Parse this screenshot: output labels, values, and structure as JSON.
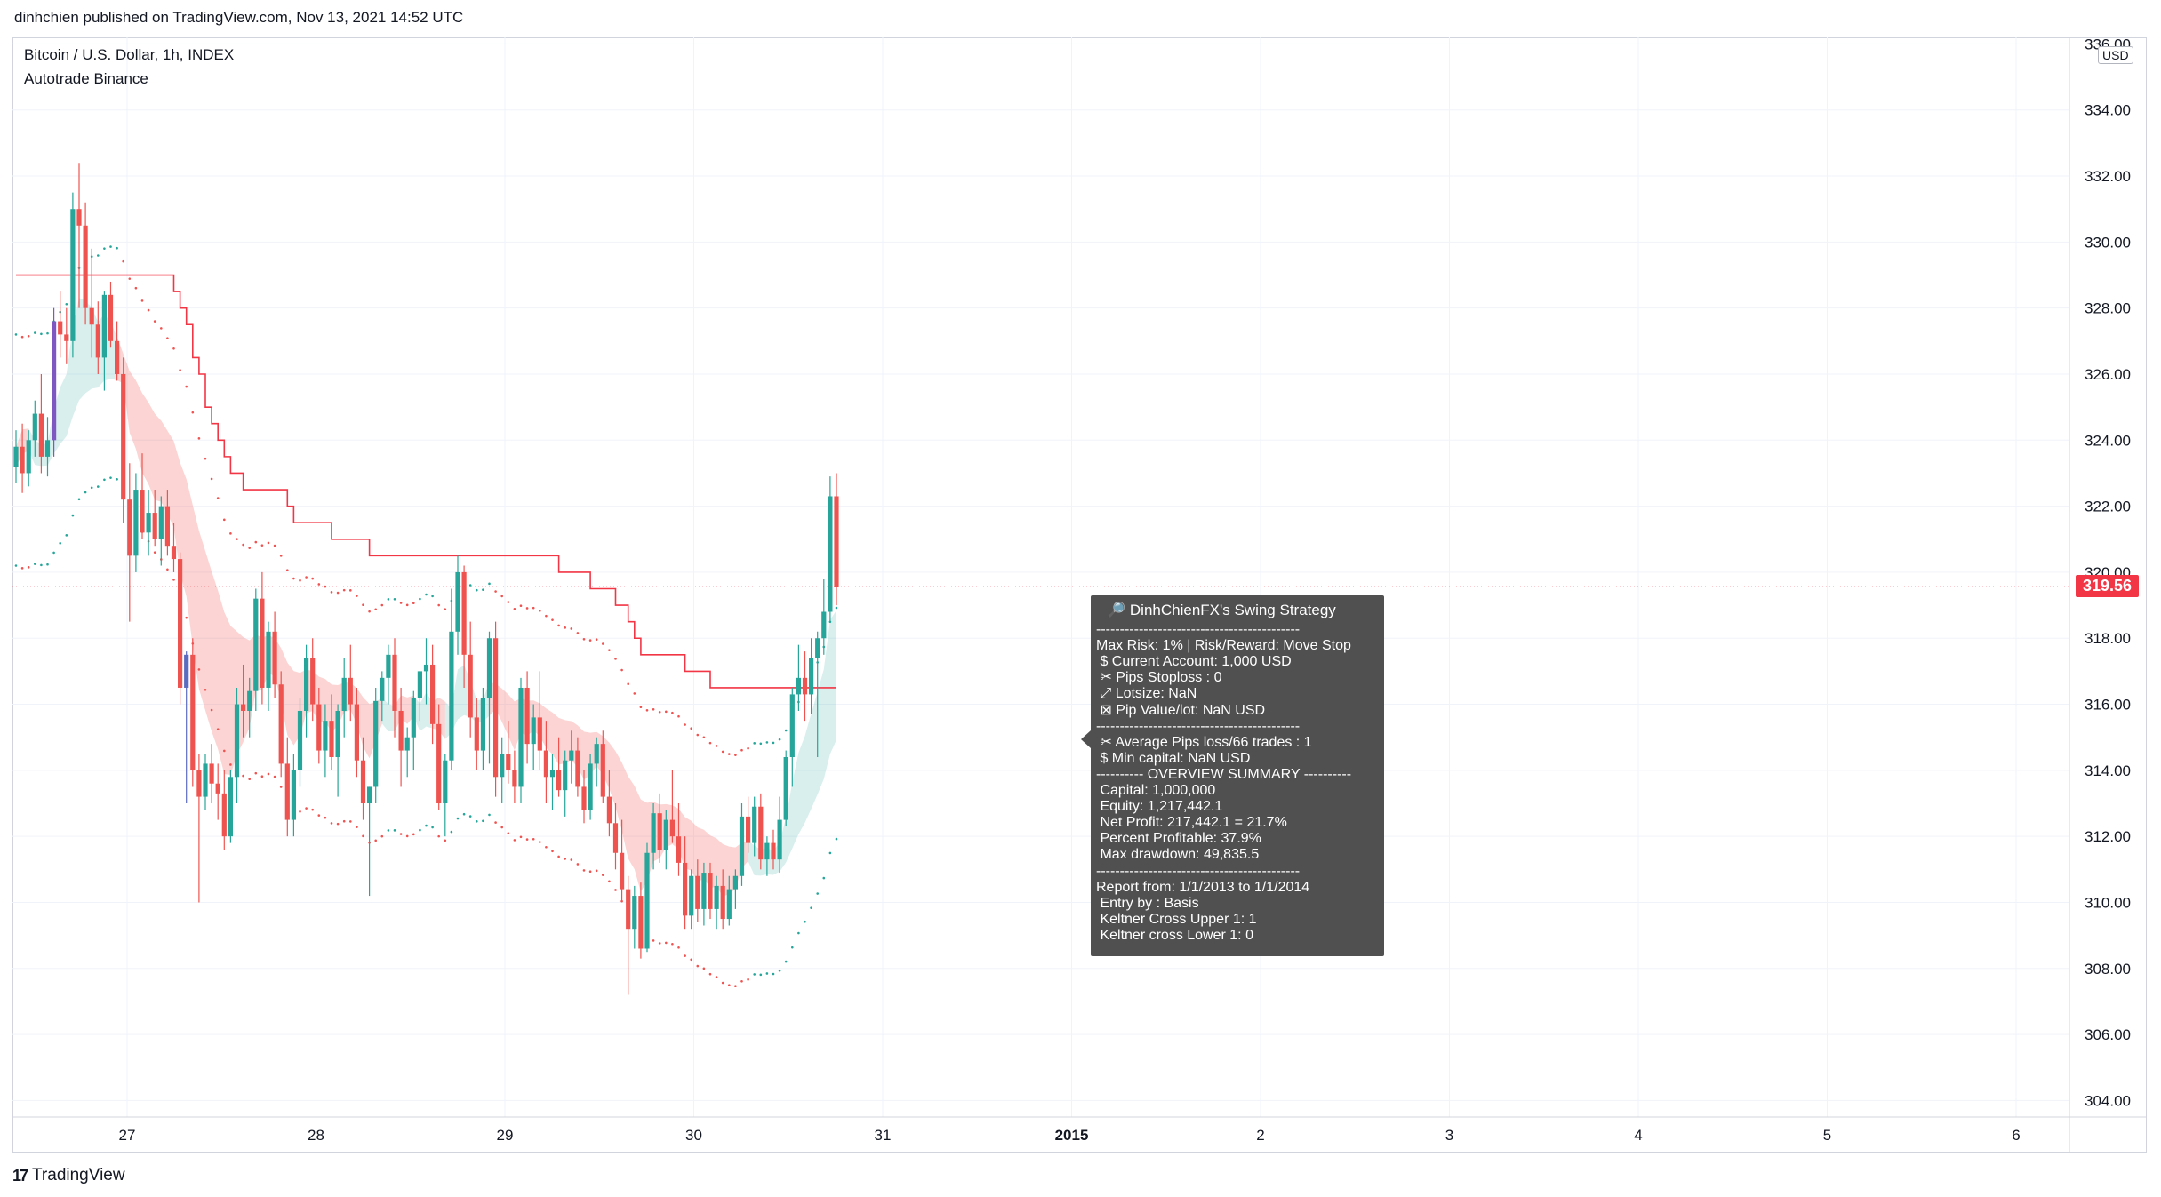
{
  "header": {
    "publisher": "dinhchien published on TradingView.com, Nov 13, 2021 14:52 UTC"
  },
  "legend": {
    "symbol": "Bitcoin / U.S. Dollar, 1h, INDEX",
    "indicator": "Autotrade Binance"
  },
  "footer": {
    "brand": "TradingView",
    "logo_glyph": "17"
  },
  "price_axis": {
    "currency": "USD",
    "last_price_label": "319.56"
  },
  "colors": {
    "up": "#26a69a",
    "down": "#ef5350",
    "special_bull": "#7e57c2",
    "special_bear": "#5b6bc0",
    "cloud_red": "rgba(239,83,80,0.25)",
    "cloud_green": "rgba(38,166,154,0.18)",
    "stop_line": "#f23645",
    "last_price": "#f23645",
    "tooltip_bg": "#505050"
  },
  "strategy_box": {
    "title": "🔎 DinhChienFX's Swing Strategy",
    "lines": [
      "-------------------------------------------",
      "Max Risk: 1% | Risk/Reward: Move Stop",
      " $ Current Account: 1,000 USD",
      " ✂ Pips Stoploss : 0",
      " ⤢ Lotsize: NaN",
      " ⊠ Pip Value/lot: NaN USD",
      "-------------------------------------------",
      " ✂ Average Pips loss/66 trades : 1",
      " $ Min capital: NaN USD",
      "---------- OVERVIEW SUMMARY ----------",
      " Capital: 1,000,000",
      " Equity: 1,217,442.1",
      " Net Profit: 217,442.1 = 21.7%",
      " Percent Profitable: 37.9%",
      " Max drawdown: 49,835.5",
      "-------------------------------------------",
      "Report from: 1/1/2013 to 1/1/2014",
      " Entry by : Basis",
      " Keltner Cross Upper 1: 1",
      " Keltner cross Lower 1: 0"
    ]
  },
  "chart_data": {
    "type": "candlestick",
    "x_ticks": [
      "27",
      "28",
      "29",
      "30",
      "31",
      "2015",
      "2",
      "3",
      "4",
      "5",
      "6"
    ],
    "y_ticks": [
      "304.00",
      "306.00",
      "308.00",
      "310.00",
      "312.00",
      "314.00",
      "316.00",
      "318.00",
      "320.00",
      "322.00",
      "324.00",
      "326.00",
      "328.00",
      "330.00",
      "332.00",
      "334.00",
      "336.00"
    ],
    "ylim": [
      303.5,
      336.2
    ],
    "last_price": 319.56,
    "candles": [
      [
        323.2,
        324.3,
        322.7,
        323.8
      ],
      [
        323.8,
        324.5,
        322.4,
        323.0
      ],
      [
        323.0,
        324.3,
        322.6,
        324.0
      ],
      [
        324.0,
        325.2,
        323.5,
        324.8
      ],
      [
        324.8,
        326.0,
        323.0,
        323.5
      ],
      [
        323.5,
        324.7,
        322.9,
        324.0
      ],
      [
        324.0,
        328.0,
        323.5,
        327.6
      ],
      [
        327.6,
        328.5,
        326.5,
        327.2
      ],
      [
        327.2,
        328.0,
        326.3,
        327.0
      ],
      [
        327.0,
        331.5,
        326.5,
        331.0
      ],
      [
        331.0,
        332.4,
        328.0,
        330.5
      ],
      [
        330.5,
        331.2,
        327.5,
        328.0
      ],
      [
        328.0,
        329.8,
        326.5,
        327.5
      ],
      [
        327.5,
        328.2,
        326.0,
        326.5
      ],
      [
        326.5,
        328.5,
        325.5,
        328.4
      ],
      [
        328.4,
        328.8,
        326.8,
        327.0
      ],
      [
        327.0,
        327.6,
        325.8,
        326.0
      ],
      [
        326.0,
        326.5,
        321.5,
        322.2
      ],
      [
        322.2,
        323.3,
        318.5,
        320.5
      ],
      [
        320.5,
        323.0,
        320.0,
        322.5
      ],
      [
        322.5,
        323.6,
        321.0,
        321.2
      ],
      [
        321.2,
        322.5,
        320.5,
        321.8
      ],
      [
        321.8,
        322.5,
        320.8,
        321.0
      ],
      [
        321.0,
        322.3,
        320.2,
        322.0
      ],
      [
        322.0,
        322.5,
        320.5,
        320.8
      ],
      [
        320.8,
        321.5,
        320.0,
        320.4
      ],
      [
        320.4,
        320.6,
        316.0,
        316.5
      ],
      [
        316.5,
        317.6,
        313.0,
        317.5
      ],
      [
        317.5,
        318.0,
        313.5,
        314.0
      ],
      [
        314.0,
        314.5,
        310.0,
        313.2
      ],
      [
        313.2,
        314.5,
        312.8,
        314.2
      ],
      [
        314.2,
        314.8,
        313.0,
        313.6
      ],
      [
        313.6,
        314.2,
        312.5,
        313.3
      ],
      [
        313.3,
        314.0,
        311.6,
        312.0
      ],
      [
        312.0,
        314.0,
        311.8,
        313.8
      ],
      [
        313.8,
        316.5,
        313.0,
        316.0
      ],
      [
        316.0,
        317.2,
        315.0,
        315.8
      ],
      [
        315.8,
        316.8,
        315.0,
        316.4
      ],
      [
        316.4,
        319.5,
        315.8,
        319.2
      ],
      [
        319.2,
        320.0,
        316.0,
        316.5
      ],
      [
        316.5,
        318.5,
        315.8,
        318.2
      ],
      [
        318.2,
        318.8,
        316.2,
        316.6
      ],
      [
        316.6,
        317.0,
        313.8,
        314.2
      ],
      [
        314.2,
        315.0,
        312.0,
        312.5
      ],
      [
        312.5,
        314.5,
        312.0,
        314.0
      ],
      [
        314.0,
        316.2,
        313.5,
        315.8
      ],
      [
        315.8,
        317.8,
        315.0,
        317.4
      ],
      [
        317.4,
        318.0,
        315.5,
        316.0
      ],
      [
        316.0,
        316.5,
        314.2,
        314.6
      ],
      [
        314.6,
        316.0,
        313.8,
        315.5
      ],
      [
        315.5,
        316.3,
        314.0,
        314.4
      ],
      [
        314.4,
        316.0,
        313.2,
        315.8
      ],
      [
        315.8,
        317.4,
        315.0,
        316.8
      ],
      [
        316.8,
        317.8,
        315.5,
        316.0
      ],
      [
        316.0,
        316.5,
        313.8,
        314.3
      ],
      [
        314.3,
        315.0,
        312.5,
        313.0
      ],
      [
        313.0,
        313.5,
        310.2,
        313.5
      ],
      [
        313.5,
        316.5,
        313.0,
        316.1
      ],
      [
        316.1,
        317.0,
        315.5,
        316.8
      ],
      [
        316.8,
        317.8,
        316.0,
        317.5
      ],
      [
        317.5,
        318.0,
        315.0,
        315.8
      ],
      [
        315.8,
        316.5,
        313.5,
        314.6
      ],
      [
        314.6,
        315.3,
        313.8,
        315.0
      ],
      [
        315.0,
        316.4,
        314.0,
        316.2
      ],
      [
        316.2,
        317.0,
        315.5,
        317.0
      ],
      [
        317.0,
        318.0,
        316.0,
        317.2
      ],
      [
        317.2,
        317.8,
        314.8,
        315.4
      ],
      [
        315.4,
        316.0,
        312.8,
        313.0
      ],
      [
        313.0,
        314.5,
        312.0,
        314.3
      ],
      [
        314.3,
        319.5,
        314.0,
        318.2
      ],
      [
        318.2,
        320.5,
        317.5,
        320.0
      ],
      [
        320.0,
        320.2,
        316.5,
        317.5
      ],
      [
        317.5,
        318.5,
        315.0,
        315.6
      ],
      [
        315.6,
        316.2,
        314.0,
        314.6
      ],
      [
        314.6,
        316.5,
        314.0,
        316.2
      ],
      [
        316.2,
        318.2,
        314.2,
        318.0
      ],
      [
        318.0,
        318.5,
        313.2,
        313.8
      ],
      [
        313.8,
        315.0,
        313.0,
        314.5
      ],
      [
        314.5,
        315.5,
        313.6,
        314.0
      ],
      [
        314.0,
        314.6,
        313.0,
        313.5
      ],
      [
        313.5,
        316.8,
        313.0,
        316.5
      ],
      [
        316.5,
        317.0,
        314.2,
        314.8
      ],
      [
        314.8,
        316.0,
        314.0,
        315.6
      ],
      [
        315.6,
        317.0,
        314.0,
        314.6
      ],
      [
        314.6,
        315.5,
        313.0,
        313.8
      ],
      [
        313.8,
        314.5,
        312.8,
        314.0
      ],
      [
        314.0,
        315.0,
        313.2,
        313.4
      ],
      [
        313.4,
        314.6,
        312.6,
        314.3
      ],
      [
        314.3,
        315.2,
        313.6,
        314.6
      ],
      [
        314.6,
        315.0,
        313.2,
        313.5
      ],
      [
        313.5,
        314.0,
        312.4,
        312.8
      ],
      [
        312.8,
        314.5,
        312.5,
        314.2
      ],
      [
        314.2,
        315.0,
        313.5,
        314.8
      ],
      [
        314.8,
        315.2,
        313.0,
        313.2
      ],
      [
        313.2,
        314.0,
        312.0,
        312.4
      ],
      [
        312.4,
        313.0,
        311.0,
        311.5
      ],
      [
        311.5,
        312.5,
        310.0,
        310.4
      ],
      [
        310.4,
        310.8,
        307.2,
        309.2
      ],
      [
        309.2,
        310.5,
        308.6,
        310.2
      ],
      [
        310.2,
        310.6,
        308.3,
        308.6
      ],
      [
        308.6,
        311.8,
        308.5,
        311.5
      ],
      [
        311.5,
        313.0,
        311.0,
        312.7
      ],
      [
        312.7,
        313.3,
        311.2,
        311.6
      ],
      [
        311.6,
        312.8,
        311.0,
        312.5
      ],
      [
        312.5,
        314.0,
        311.8,
        312.0
      ],
      [
        312.0,
        313.0,
        310.8,
        311.2
      ],
      [
        311.2,
        312.0,
        309.2,
        309.6
      ],
      [
        309.6,
        311.0,
        309.2,
        310.8
      ],
      [
        310.8,
        311.3,
        309.4,
        309.8
      ],
      [
        309.8,
        311.2,
        309.3,
        310.9
      ],
      [
        310.9,
        311.2,
        309.5,
        309.8
      ],
      [
        309.8,
        310.8,
        309.2,
        310.5
      ],
      [
        310.5,
        311.0,
        309.2,
        309.5
      ],
      [
        309.5,
        310.8,
        309.3,
        310.4
      ],
      [
        310.4,
        311.0,
        309.8,
        310.8
      ],
      [
        310.8,
        313.0,
        310.5,
        312.6
      ],
      [
        312.6,
        313.2,
        311.5,
        311.8
      ],
      [
        311.8,
        313.2,
        311.4,
        312.9
      ],
      [
        312.9,
        313.3,
        311.0,
        311.3
      ],
      [
        311.3,
        312.0,
        310.8,
        311.8
      ],
      [
        311.8,
        312.2,
        311.0,
        311.3
      ],
      [
        311.3,
        313.2,
        310.9,
        312.5
      ],
      [
        312.5,
        314.6,
        312.3,
        314.4
      ],
      [
        314.4,
        316.5,
        313.5,
        316.3
      ],
      [
        316.3,
        317.8,
        315.8,
        316.8
      ],
      [
        316.8,
        317.6,
        315.5,
        316.3
      ],
      [
        316.3,
        318.0,
        315.7,
        317.4
      ],
      [
        317.4,
        318.2,
        314.4,
        318.0
      ],
      [
        318.0,
        319.8,
        317.5,
        318.8
      ],
      [
        318.8,
        322.9,
        318.5,
        322.3
      ],
      [
        322.3,
        323.0,
        319.0,
        319.56
      ]
    ]
  }
}
